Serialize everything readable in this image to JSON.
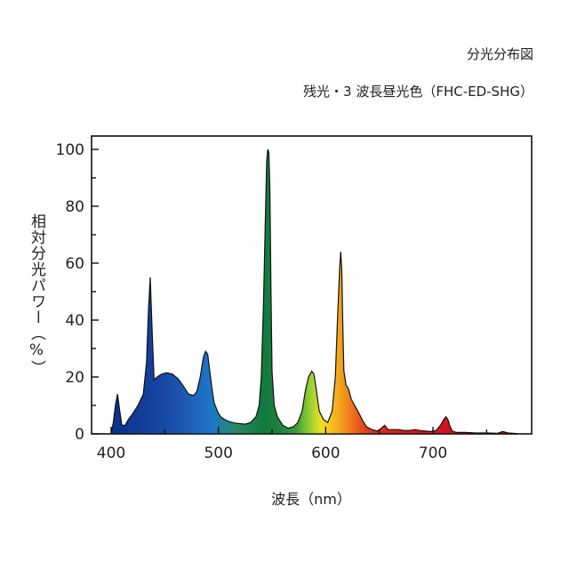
{
  "header": {
    "line1": "分光分布図",
    "line2": "残光・3 波長昼光色（FHC-ED-SHG）"
  },
  "chart_data": {
    "type": "area",
    "title": "分光分布図",
    "subtitle": "残光・3 波長昼光色（FHC-ED-SHG）",
    "xlabel": "波長（nm）",
    "ylabel": "相対分光パワー（%）",
    "xlim": [
      380,
      780
    ],
    "ylim": [
      0,
      105
    ],
    "x_ticks": [
      400,
      500,
      600,
      700
    ],
    "y_ticks": [
      0,
      20,
      40,
      60,
      80,
      100
    ],
    "grid": false,
    "series": [
      {
        "x": [
          400,
          402,
          404,
          406,
          408,
          410,
          413,
          416,
          420,
          425,
          430,
          433,
          435,
          436.5,
          438,
          440,
          443,
          447,
          452,
          457,
          462,
          467,
          472,
          477,
          480,
          483,
          486,
          488,
          490,
          492,
          494,
          496,
          499,
          502,
          506,
          510,
          515,
          520,
          525,
          530,
          535,
          538,
          540,
          542,
          544,
          545,
          546,
          547,
          548,
          549,
          550,
          552,
          555,
          560,
          565,
          570,
          574,
          578,
          581,
          584,
          587,
          589,
          591,
          594,
          598,
          602,
          606,
          609,
          611,
          613,
          614,
          615,
          616,
          617,
          619,
          621,
          624,
          627,
          630,
          634,
          638,
          643,
          648,
          652,
          655,
          658,
          663,
          668,
          673,
          678,
          683,
          688,
          693,
          698,
          703,
          707,
          710,
          712,
          714,
          716,
          718,
          722,
          730,
          740,
          750,
          760,
          765,
          770,
          775,
          780
        ],
        "values": [
          0,
          4,
          10,
          14,
          8,
          3,
          3,
          5,
          7,
          10,
          14,
          25,
          45,
          55,
          38,
          19,
          20,
          21,
          21.5,
          21,
          19.5,
          17,
          14,
          13.5,
          15,
          20,
          27,
          29,
          28,
          22,
          16,
          11,
          8,
          6,
          5,
          4.3,
          3.8,
          3.6,
          3.4,
          4,
          6,
          10,
          20,
          45,
          80,
          96,
          100,
          99,
          85,
          50,
          22,
          10,
          6,
          3,
          2,
          2.5,
          4,
          8,
          15,
          20,
          22,
          21,
          16,
          8,
          5,
          4,
          8,
          20,
          40,
          58,
          64,
          58,
          38,
          22,
          17,
          16,
          12,
          10,
          8,
          5,
          2.5,
          1.5,
          1,
          2,
          3,
          1.5,
          1.5,
          1.5,
          1.2,
          1.2,
          1.5,
          1.2,
          1,
          0.8,
          1.2,
          3,
          5,
          6,
          5,
          2.5,
          1,
          0.5,
          0.5,
          0.3,
          0.3,
          0.2,
          0.8,
          0.3,
          0.2,
          0
        ]
      }
    ]
  }
}
